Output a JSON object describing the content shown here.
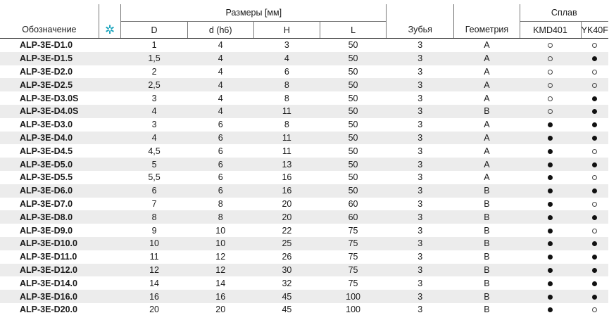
{
  "header": {
    "designation": "Обозначение",
    "star_icon": "✲",
    "dimensions_group": "Размеры [мм]",
    "alloy_group": "Сплав",
    "columns": [
      "D",
      "d (h6)",
      "H",
      "L"
    ],
    "teeth": "Зубья",
    "geometry": "Геометрия",
    "alloys": [
      "KMD401",
      "YK40F"
    ]
  },
  "legend_symbols": {
    "filled": "●",
    "open": "○"
  },
  "rows": [
    {
      "code": "ALP-3E-D1.0",
      "D": "1",
      "d": "4",
      "H": "3",
      "L": "50",
      "teeth": "3",
      "geom": "A",
      "kmd": "open",
      "yk": "open"
    },
    {
      "code": "ALP-3E-D1.5",
      "D": "1,5",
      "d": "4",
      "H": "4",
      "L": "50",
      "teeth": "3",
      "geom": "A",
      "kmd": "open",
      "yk": "filled"
    },
    {
      "code": "ALP-3E-D2.0",
      "D": "2",
      "d": "4",
      "H": "6",
      "L": "50",
      "teeth": "3",
      "geom": "A",
      "kmd": "open",
      "yk": "open"
    },
    {
      "code": "ALP-3E-D2.5",
      "D": "2,5",
      "d": "4",
      "H": "8",
      "L": "50",
      "teeth": "3",
      "geom": "A",
      "kmd": "open",
      "yk": "open"
    },
    {
      "code": "ALP-3E-D3.0S",
      "D": "3",
      "d": "4",
      "H": "8",
      "L": "50",
      "teeth": "3",
      "geom": "A",
      "kmd": "open",
      "yk": "filled"
    },
    {
      "code": "ALP-3E-D4.0S",
      "D": "4",
      "d": "4",
      "H": "11",
      "L": "50",
      "teeth": "3",
      "geom": "B",
      "kmd": "open",
      "yk": "filled"
    },
    {
      "code": "ALP-3E-D3.0",
      "D": "3",
      "d": "6",
      "H": "8",
      "L": "50",
      "teeth": "3",
      "geom": "A",
      "kmd": "filled",
      "yk": "filled"
    },
    {
      "code": "ALP-3E-D4.0",
      "D": "4",
      "d": "6",
      "H": "11",
      "L": "50",
      "teeth": "3",
      "geom": "A",
      "kmd": "filled",
      "yk": "filled"
    },
    {
      "code": "ALP-3E-D4.5",
      "D": "4,5",
      "d": "6",
      "H": "11",
      "L": "50",
      "teeth": "3",
      "geom": "A",
      "kmd": "filled",
      "yk": "open"
    },
    {
      "code": "ALP-3E-D5.0",
      "D": "5",
      "d": "6",
      "H": "13",
      "L": "50",
      "teeth": "3",
      "geom": "A",
      "kmd": "filled",
      "yk": "filled"
    },
    {
      "code": "ALP-3E-D5.5",
      "D": "5,5",
      "d": "6",
      "H": "16",
      "L": "50",
      "teeth": "3",
      "geom": "A",
      "kmd": "filled",
      "yk": "open"
    },
    {
      "code": "ALP-3E-D6.0",
      "D": "6",
      "d": "6",
      "H": "16",
      "L": "50",
      "teeth": "3",
      "geom": "B",
      "kmd": "filled",
      "yk": "filled"
    },
    {
      "code": "ALP-3E-D7.0",
      "D": "7",
      "d": "8",
      "H": "20",
      "L": "60",
      "teeth": "3",
      "geom": "B",
      "kmd": "filled",
      "yk": "open"
    },
    {
      "code": "ALP-3E-D8.0",
      "D": "8",
      "d": "8",
      "H": "20",
      "L": "60",
      "teeth": "3",
      "geom": "B",
      "kmd": "filled",
      "yk": "filled"
    },
    {
      "code": "ALP-3E-D9.0",
      "D": "9",
      "d": "10",
      "H": "22",
      "L": "75",
      "teeth": "3",
      "geom": "B",
      "kmd": "filled",
      "yk": "open"
    },
    {
      "code": "ALP-3E-D10.0",
      "D": "10",
      "d": "10",
      "H": "25",
      "L": "75",
      "teeth": "3",
      "geom": "B",
      "kmd": "filled",
      "yk": "filled"
    },
    {
      "code": "ALP-3E-D11.0",
      "D": "11",
      "d": "12",
      "H": "26",
      "L": "75",
      "teeth": "3",
      "geom": "B",
      "kmd": "filled",
      "yk": "filled"
    },
    {
      "code": "ALP-3E-D12.0",
      "D": "12",
      "d": "12",
      "H": "30",
      "L": "75",
      "teeth": "3",
      "geom": "B",
      "kmd": "filled",
      "yk": "filled"
    },
    {
      "code": "ALP-3E-D14.0",
      "D": "14",
      "d": "14",
      "H": "32",
      "L": "75",
      "teeth": "3",
      "geom": "B",
      "kmd": "filled",
      "yk": "filled"
    },
    {
      "code": "ALP-3E-D16.0",
      "D": "16",
      "d": "16",
      "H": "45",
      "L": "100",
      "teeth": "3",
      "geom": "B",
      "kmd": "filled",
      "yk": "filled"
    },
    {
      "code": "ALP-3E-D20.0",
      "D": "20",
      "d": "20",
      "H": "45",
      "L": "100",
      "teeth": "3",
      "geom": "B",
      "kmd": "filled",
      "yk": "open"
    }
  ]
}
